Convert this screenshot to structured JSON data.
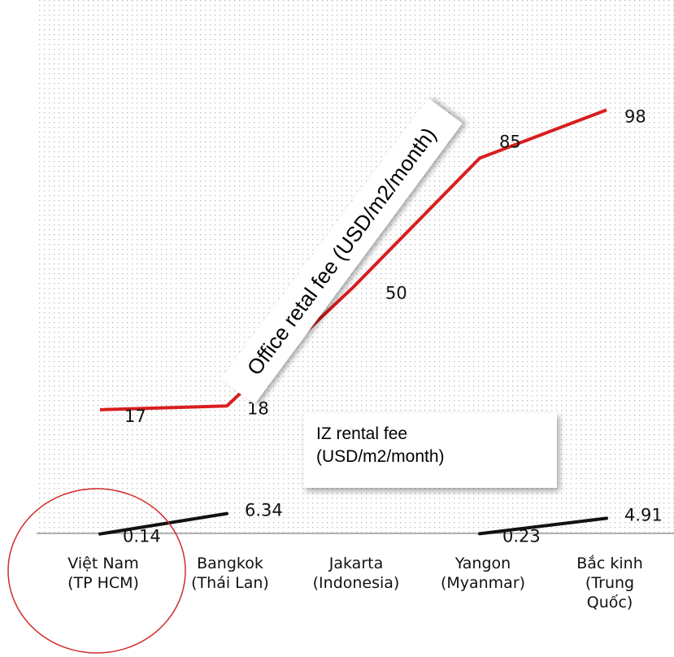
{
  "chart_data": {
    "type": "line",
    "categories": [
      [
        "Việt Nam",
        "(TP HCM)"
      ],
      [
        "Bangkok",
        "(Thái Lan)"
      ],
      [
        "Jakarta",
        "(Indonesia)"
      ],
      [
        "Yangon",
        "(Myanmar)"
      ],
      [
        "Bắc kinh",
        "(Trung",
        "Quốc)"
      ]
    ],
    "series": [
      {
        "name": "Office retal fee (USD/m2/month)",
        "color": "#d91e1e",
        "values": [
          17,
          18,
          50,
          85,
          98
        ],
        "labels": [
          "17",
          "18",
          "50",
          "85",
          "98"
        ]
      },
      {
        "name": "IZ rental fee (USD/m2/month)",
        "color": "#111111",
        "values": [
          0.14,
          6.34,
          null,
          0.23,
          4.91
        ],
        "labels": [
          "0.14",
          "6.34",
          "",
          "0.23",
          "4.91"
        ]
      }
    ],
    "title": "",
    "xlabel": "",
    "ylabel": "",
    "grid": false,
    "background": "dotted",
    "annotations": [
      "red circle around Việt Nam (TP HCM)"
    ]
  },
  "callouts": {
    "office": "Office retal fee (USD/m2/month)",
    "iz_line1": "IZ rental fee",
    "iz_line2": "(USD/m2/month)"
  }
}
